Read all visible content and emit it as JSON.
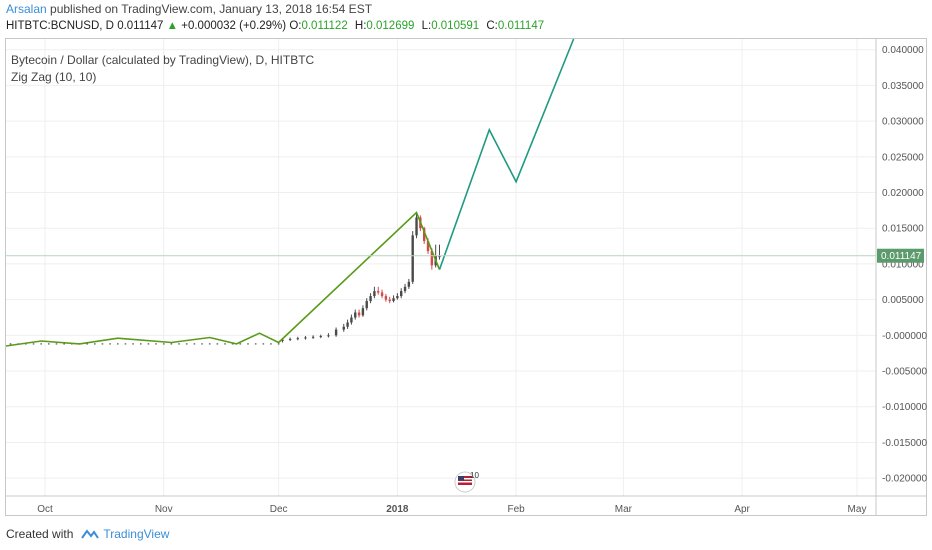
{
  "header": {
    "author": "Arsalan",
    "published": "published on TradingView.com, January 13, 2018 16:54 EST"
  },
  "ticker": {
    "symbol": "HITBTC:BCNUSD, D",
    "last": "0.011147",
    "change": "+0.000032 (+0.29%)",
    "open_label": "O:",
    "open": "0.011122",
    "high_label": "H:",
    "high": "0.012699",
    "low_label": "L:",
    "low": "0.010591",
    "close_label": "C:",
    "close": "0.011147"
  },
  "legend": {
    "title": "Bytecoin / Dollar (calculated by TradingView), D, HITBTC",
    "indicator": "Zig Zag (10, 10)"
  },
  "footer": {
    "created_with": "Created with",
    "brand": "TradingView"
  },
  "colors": {
    "zigzag_history": "#5a9a1a",
    "zigzag_projection": "#1f9a80",
    "candle_up": "#4a4a4a",
    "candle_down": "#d04a4a",
    "price_marker": "#5b9a6b"
  },
  "chart_data": {
    "type": "line",
    "x_axis": {
      "ticks": [
        "Oct",
        "Nov",
        "Dec",
        "2018",
        "Feb",
        "Mar",
        "Apr",
        "May"
      ]
    },
    "y_axis": {
      "ticks": [
        "0.040000",
        "0.035000",
        "0.030000",
        "0.025000",
        "0.020000",
        "0.015000",
        "0.010000",
        "0.005000",
        "-0.000000",
        "-0.005000",
        "-0.010000",
        "-0.015000",
        "-0.020000"
      ],
      "ylim": [
        -0.0225,
        0.0415
      ]
    },
    "last_price": {
      "label": "0.011147",
      "value": 0.011147
    },
    "series": [
      {
        "name": "Zig Zag (10, 10)",
        "x": [
          "2017-09-15",
          "2017-09-30",
          "2017-10-10",
          "2017-10-20",
          "2017-11-03",
          "2017-11-13",
          "2017-11-20",
          "2017-11-26",
          "2017-12-01",
          "2018-01-06",
          "2018-01-12"
        ],
        "values": [
          -0.0015,
          -0.0008,
          -0.0012,
          -0.0004,
          -0.001,
          -0.0003,
          -0.0012,
          0.0003,
          -0.001,
          0.0172,
          0.0092
        ]
      },
      {
        "name": "",
        "x": [
          "2018-01-12",
          "2018-01-25",
          "2018-02-01",
          "2018-02-16"
        ],
        "values": [
          0.0092,
          0.0288,
          0.0215,
          0.0415
        ]
      }
    ],
    "candles": {
      "x": [
        "2017-12-02",
        "2017-12-04",
        "2017-12-06",
        "2017-12-08",
        "2017-12-10",
        "2017-12-12",
        "2017-12-14",
        "2017-12-16",
        "2017-12-18",
        "2017-12-19",
        "2017-12-20",
        "2017-12-21",
        "2017-12-22",
        "2017-12-23",
        "2017-12-24",
        "2017-12-25",
        "2017-12-26",
        "2017-12-27",
        "2017-12-28",
        "2017-12-29",
        "2017-12-30",
        "2017-12-31",
        "2018-01-01",
        "2018-01-02",
        "2018-01-03",
        "2018-01-04",
        "2018-01-05",
        "2018-01-06",
        "2018-01-07",
        "2018-01-08",
        "2018-01-09",
        "2018-01-10",
        "2018-01-11",
        "2018-01-12"
      ],
      "open": [
        -0.0008,
        -0.0006,
        -0.0005,
        -0.0004,
        -0.0003,
        -0.0002,
        -0.0001,
        0.0,
        0.0008,
        0.0012,
        0.0018,
        0.0025,
        0.0032,
        0.0028,
        0.0038,
        0.0048,
        0.0055,
        0.0062,
        0.006,
        0.0055,
        0.005,
        0.0048,
        0.0052,
        0.0055,
        0.0062,
        0.0068,
        0.0075,
        0.014,
        0.0165,
        0.015,
        0.0132,
        0.0118,
        0.0098,
        0.0111
      ],
      "close": [
        -0.0006,
        -0.0005,
        -0.0004,
        -0.0003,
        -0.0002,
        -0.0001,
        0.0,
        0.0008,
        0.0012,
        0.0018,
        0.0025,
        0.0032,
        0.0028,
        0.0038,
        0.0048,
        0.0055,
        0.0062,
        0.006,
        0.0055,
        0.005,
        0.0048,
        0.0052,
        0.0055,
        0.0062,
        0.0068,
        0.0075,
        0.014,
        0.0165,
        0.015,
        0.0132,
        0.0118,
        0.0098,
        0.0111,
        0.0111
      ],
      "high": [
        -0.0004,
        -0.0003,
        -0.0002,
        -0.0001,
        0.0,
        0.0001,
        0.0003,
        0.0011,
        0.0016,
        0.0022,
        0.0029,
        0.0036,
        0.0036,
        0.0042,
        0.0052,
        0.0059,
        0.0068,
        0.0068,
        0.0064,
        0.0058,
        0.0054,
        0.0056,
        0.0059,
        0.0066,
        0.0072,
        0.0079,
        0.0146,
        0.0172,
        0.0168,
        0.0152,
        0.0136,
        0.0122,
        0.0127,
        0.0127
      ],
      "low": [
        -0.001,
        -0.0008,
        -0.0007,
        -0.0006,
        -0.0005,
        -0.0004,
        -0.0003,
        -0.0002,
        0.0005,
        0.0009,
        0.0015,
        0.0022,
        0.0025,
        0.0026,
        0.0035,
        0.0045,
        0.0052,
        0.0057,
        0.0052,
        0.0047,
        0.0045,
        0.0046,
        0.005,
        0.0052,
        0.0059,
        0.0065,
        0.0072,
        0.0136,
        0.0146,
        0.0128,
        0.0114,
        0.0092,
        0.0095,
        0.0106
      ]
    },
    "grid": true
  }
}
